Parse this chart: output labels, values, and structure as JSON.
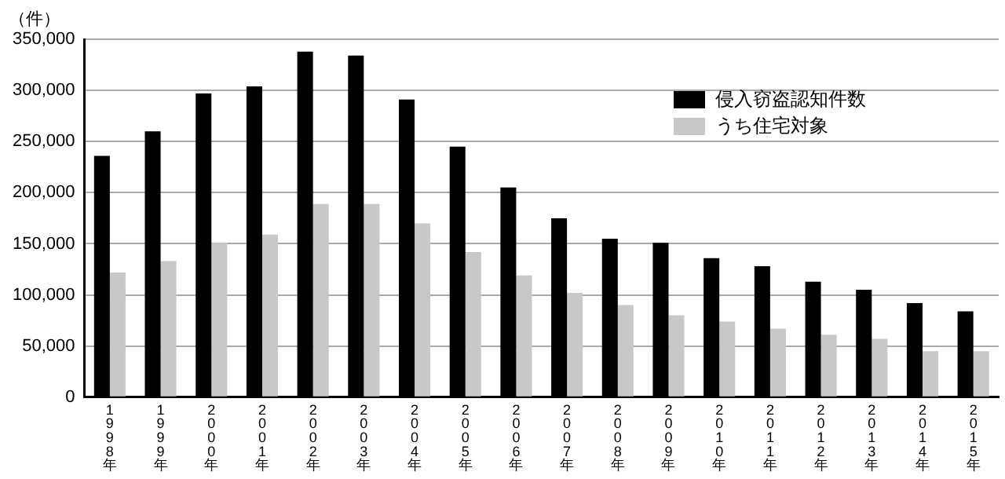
{
  "chart_data": {
    "type": "bar",
    "ylabel": "（件）",
    "categories": [
      "1998年",
      "1999年",
      "2000年",
      "2001年",
      "2002年",
      "2003年",
      "2004年",
      "2005年",
      "2006年",
      "2007年",
      "2008年",
      "2009年",
      "2010年",
      "2011年",
      "2012年",
      "2013年",
      "2014年",
      "2015年"
    ],
    "series": [
      {
        "name": "侵入窃盗認知件数",
        "color": "#000000",
        "values": [
          236000,
          260000,
          297000,
          304000,
          338000,
          334000,
          291000,
          245000,
          205000,
          175000,
          155000,
          151000,
          136000,
          128000,
          113000,
          105000,
          92000,
          84000
        ]
      },
      {
        "name": "うち住宅対象",
        "color": "#c8c8c8",
        "values": [
          122000,
          133000,
          151000,
          159000,
          189000,
          189000,
          170000,
          142000,
          119000,
          102000,
          90000,
          80000,
          74000,
          67000,
          61000,
          57000,
          45000,
          45000
        ]
      }
    ],
    "ylim": [
      0,
      350000
    ],
    "yticks": [
      0,
      {
        "value": 50000,
        "label": "50,000"
      },
      {
        "value": 100000,
        "label": "100,000"
      },
      {
        "value": 150000,
        "label": "150,000"
      },
      {
        "value": 200000,
        "label": "200,000"
      },
      {
        "value": 250000,
        "label": "250,000"
      },
      {
        "value": 300000,
        "label": "300,000"
      },
      {
        "value": 350000,
        "label": "350,000"
      }
    ],
    "grid": "y",
    "legend": "top right"
  }
}
